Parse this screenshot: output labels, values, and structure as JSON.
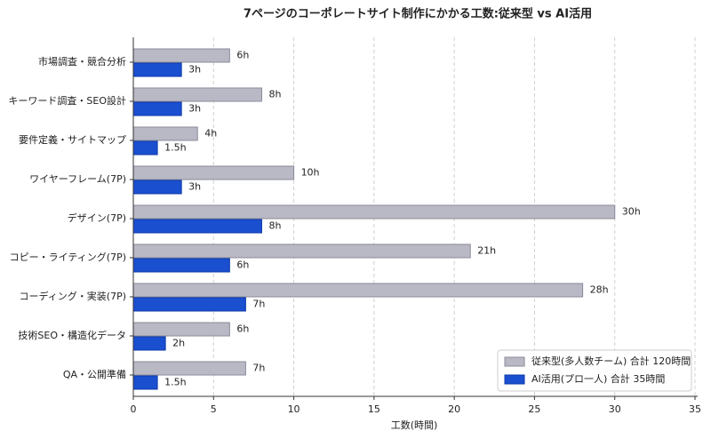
{
  "chart_data": {
    "type": "barh",
    "title": "7ページのコーポレートサイト制作にかかる工数:従来型 vs AI活用",
    "xlabel": "工数(時間)",
    "categories": [
      "市場調査・競合分析",
      "キーワード調査・SEO設計",
      "要件定義・サイトマップ",
      "ワイヤーフレーム(7P)",
      "デザイン(7P)",
      "コピー・ライティング(7P)",
      "コーディング・実装(7P)",
      "技術SEO・構造化データ",
      "QA・公開準備"
    ],
    "series": [
      {
        "name": "従来型(多人数チーム) 合計 120時間",
        "color": "#b9b9c5",
        "values": [
          6,
          8,
          4,
          10,
          30,
          21,
          28,
          6,
          7
        ],
        "value_labels": [
          "6h",
          "8h",
          "4h",
          "10h",
          "30h",
          "21h",
          "28h",
          "6h",
          "7h"
        ]
      },
      {
        "name": "AI活用(プロ一人) 合計 35時間",
        "color": "#1a4fd0",
        "values": [
          3,
          3,
          1.5,
          3,
          8,
          6,
          7,
          2,
          1.5
        ],
        "value_labels": [
          "3h",
          "3h",
          "1.5h",
          "3h",
          "8h",
          "6h",
          "7h",
          "2h",
          "1.5h"
        ]
      }
    ],
    "xlim": [
      0,
      35
    ],
    "xticks": [
      0,
      5,
      10,
      15,
      20,
      25,
      30,
      35
    ],
    "grid": true,
    "legend": "lower right"
  }
}
